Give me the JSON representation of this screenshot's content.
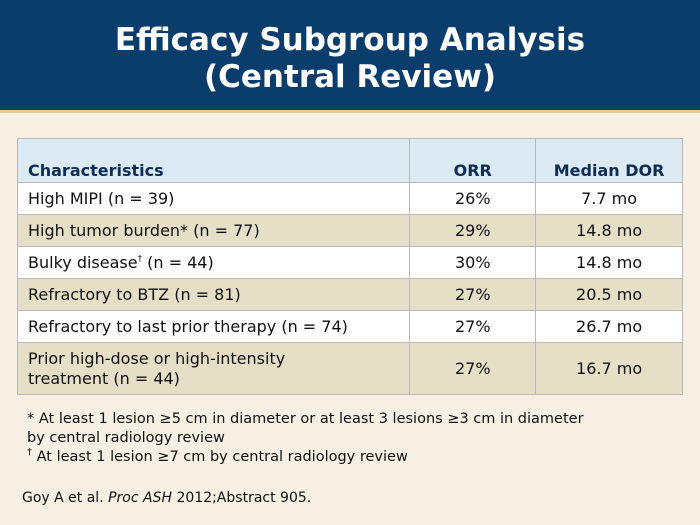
{
  "title": {
    "line1": "Efficacy Subgroup Analysis",
    "line2": "(Central Review)"
  },
  "table": {
    "headers": [
      "Characteristics",
      "ORR",
      "Median DOR"
    ],
    "rows": [
      {
        "label": "High MIPI (n = 39)",
        "orr": "26%",
        "dor": "7.7 mo"
      },
      {
        "label": "High tumor burden* (n = 77)",
        "orr": "29%",
        "dor": "14.8 mo"
      },
      {
        "label_pre": "Bulky disease",
        "label_sup": "†",
        "label_post": " (n = 44)",
        "orr": "30%",
        "dor": "14.8 mo"
      },
      {
        "label": "Refractory to BTZ (n = 81)",
        "orr": "27%",
        "dor": "20.5 mo"
      },
      {
        "label": "Refractory to last prior therapy (n = 74)",
        "orr": "27%",
        "dor": "26.7 mo"
      },
      {
        "label_line1": "Prior high-dose or high-intensity",
        "label_line2": "treatment (n = 44)",
        "orr": "27%",
        "dor": "16.7 mo"
      }
    ]
  },
  "footnotes": {
    "star_line1": "* At least 1 lesion ≥5 cm in diameter or at least 3 lesions ≥3 cm in diameter",
    "star_line2": "by central radiology review",
    "dagger_mark": "†",
    "dagger_text": " At least 1 lesion ≥7 cm by central radiology review"
  },
  "citation": {
    "authors": "Goy A et al. ",
    "journal": "Proc ASH",
    "rest": " 2012;Abstract 905."
  }
}
